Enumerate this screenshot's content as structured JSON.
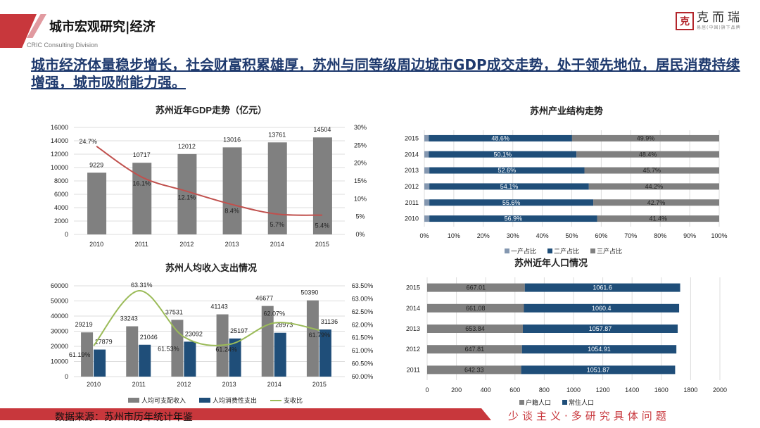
{
  "header": {
    "section_title": "城市宏观研究|经济",
    "subtitle": "CRIC Consulting Division",
    "logo_name": "克而瑞",
    "logo_tagline": "易居(中国)旗下品牌",
    "logo_seal": "克"
  },
  "headline": "城市经济体量稳步增长，社会财富积累雄厚，苏州与同等级周边城市GDP成交走势，处于领先地位，居民消费持续增强，城市吸附能力强。",
  "footer": {
    "source": "数据来源：苏州市历年统计年鉴",
    "slogan": "少谈主义·多研究具体问题",
    "accent": "#c8373c"
  },
  "chart_data": [
    {
      "id": "gdp",
      "type": "bar+line",
      "title": "苏州近年GDP走势（亿元）",
      "categories": [
        "2010",
        "2011",
        "2012",
        "2013",
        "2014",
        "2015"
      ],
      "series": [
        {
          "type": "bar",
          "values": [
            9229,
            10717,
            12012,
            13016,
            13761,
            14504
          ],
          "color": "#808080"
        },
        {
          "type": "line",
          "axis": "right",
          "values": [
            24.7,
            16.1,
            12.1,
            8.4,
            5.7,
            5.4
          ],
          "labels": [
            "24.7%",
            "16.1%",
            "12.1%",
            "8.4%",
            "5.7%",
            "5.4%"
          ],
          "color": "#c0504d"
        }
      ],
      "ylim": [
        0,
        16000
      ],
      "yticks": [
        0,
        2000,
        4000,
        6000,
        8000,
        10000,
        12000,
        14000,
        16000
      ],
      "y2lim": [
        0,
        30
      ],
      "y2ticks": [
        "0%",
        "5%",
        "10%",
        "15%",
        "20%",
        "25%",
        "30%"
      ],
      "grid": true
    },
    {
      "id": "industry",
      "type": "stacked-bar-horizontal",
      "title": "苏州产业结构走势",
      "categories": [
        "2015",
        "2014",
        "2013",
        "2012",
        "2011",
        "2010"
      ],
      "series": [
        {
          "name": "一产占比",
          "values": [
            1.5,
            1.5,
            1.7,
            1.7,
            1.7,
            1.7
          ],
          "color": "#8497b0"
        },
        {
          "name": "二产占比",
          "values": [
            48.6,
            50.1,
            52.6,
            54.1,
            55.6,
            56.9
          ],
          "labels": [
            "48.6%",
            "50.1%",
            "52.6%",
            "54.1%",
            "55.6%",
            "56.9%"
          ],
          "color": "#1f4e79"
        },
        {
          "name": "三产占比",
          "values": [
            49.9,
            48.4,
            45.7,
            44.2,
            42.7,
            41.4
          ],
          "labels": [
            "49.9%",
            "48.4%",
            "45.7%",
            "44.2%",
            "42.7%",
            "41.4%"
          ],
          "color": "#808080"
        }
      ],
      "xlim": [
        0,
        100
      ],
      "xticks": [
        "0%",
        "10%",
        "20%",
        "30%",
        "40%",
        "50%",
        "60%",
        "70%",
        "80%",
        "90%",
        "100%"
      ],
      "legend": "bottom",
      "grid": true
    },
    {
      "id": "income",
      "type": "bar+line",
      "title": "苏州人均收入支出情况",
      "categories": [
        "2010",
        "2011",
        "2012",
        "2013",
        "2014",
        "2015"
      ],
      "series": [
        {
          "name": "人均可支配收入",
          "type": "bar",
          "values": [
            29219,
            33243,
            37531,
            41143,
            46677,
            50390
          ],
          "color": "#808080"
        },
        {
          "name": "人均消费性支出",
          "type": "bar",
          "values": [
            17879,
            21046,
            23092,
            25197,
            28973,
            31136
          ],
          "color": "#1f4e79"
        },
        {
          "name": "支收比",
          "type": "line",
          "axis": "right",
          "values": [
            61.19,
            63.31,
            61.53,
            61.24,
            62.07,
            61.79
          ],
          "labels": [
            "61.19%",
            "63.31%",
            "61.53%",
            "61.24%",
            "62.07%",
            "61.79%"
          ],
          "color": "#9bbb59"
        }
      ],
      "ylim": [
        0,
        60000
      ],
      "yticks": [
        0,
        10000,
        20000,
        30000,
        40000,
        50000,
        60000
      ],
      "y2lim": [
        60,
        63.5
      ],
      "y2ticks": [
        "60.00%",
        "60.50%",
        "61.00%",
        "61.50%",
        "62.00%",
        "62.50%",
        "63.00%",
        "63.50%"
      ],
      "legend": "bottom",
      "grid": true
    },
    {
      "id": "population",
      "type": "stacked-bar-horizontal",
      "title": "苏州近年人口情况",
      "categories": [
        "2015",
        "2014",
        "2013",
        "2012",
        "2011"
      ],
      "series": [
        {
          "name": "户籍人口",
          "values": [
            667.01,
            661.08,
            653.84,
            647.81,
            642.33
          ],
          "labels": [
            "667.01",
            "661.08",
            "653.84",
            "647.81",
            "642.33"
          ],
          "color": "#808080"
        },
        {
          "name": "常住人口",
          "values": [
            1061.6,
            1060.4,
            1057.87,
            1054.91,
            1051.87
          ],
          "labels": [
            "1061.6",
            "1060.4",
            "1057.87",
            "1054.91",
            "1051.87"
          ],
          "color": "#1f4e79"
        }
      ],
      "xlim": [
        0,
        2000
      ],
      "xticks": [
        "0",
        "200",
        "400",
        "600",
        "800",
        "1000",
        "1200",
        "1400",
        "1600",
        "1800",
        "2000"
      ],
      "legend": "bottom",
      "grid": true
    }
  ]
}
